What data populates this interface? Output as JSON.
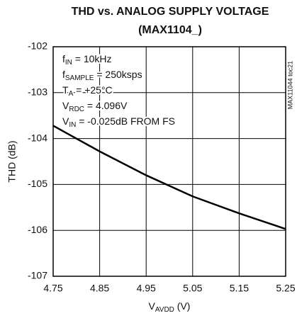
{
  "chart_data": {
    "type": "line",
    "title": [
      "THD vs. ANALOG SUPPLY VOLTAGE",
      "(MAX1104_)"
    ],
    "x_label": {
      "main": "V",
      "sub": "AVDD",
      "rest": " (V)"
    },
    "y_label": "THD (dB)",
    "side_label": "MAX11044 toc21",
    "annotations": [
      {
        "main": "f",
        "sub": "IN",
        "rest": " = 10kHz"
      },
      {
        "main": "f",
        "sub": "SAMPLE",
        "rest": " = 250ksps"
      },
      {
        "main": "T",
        "sub": "A",
        "rest": " = +25°C"
      },
      {
        "main": "V",
        "sub": "RDC",
        "rest": " = 4.096V"
      },
      {
        "main": "V",
        "sub": "IN",
        "rest": " = -0.025dB FROM FS"
      }
    ],
    "x": [
      4.75,
      4.85,
      4.95,
      5.05,
      5.15,
      5.25
    ],
    "series": [
      {
        "color": "#000000",
        "values": [
          -103.72,
          -104.28,
          -104.8,
          -105.26,
          -105.63,
          -105.97
        ]
      }
    ],
    "xlim": [
      4.75,
      5.25
    ],
    "xticks": [
      4.75,
      4.85,
      4.95,
      5.05,
      5.15,
      5.25
    ],
    "ylim": [
      -107,
      -102
    ],
    "yticks": [
      -107,
      -106,
      -105,
      -104,
      -103,
      -102
    ],
    "grid": true
  }
}
